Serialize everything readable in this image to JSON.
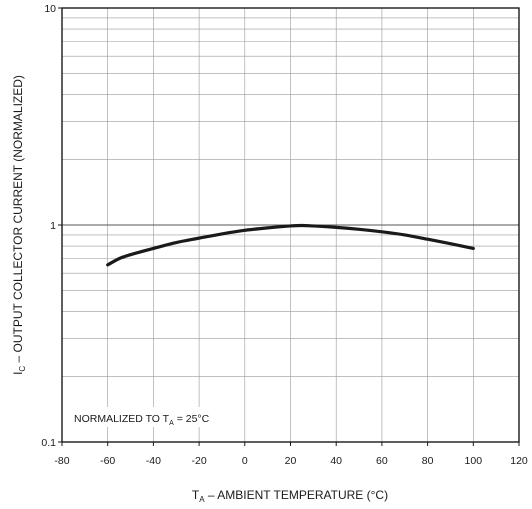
{
  "chart_data": {
    "type": "line",
    "xlabel": "T_A – AMBIENT TEMPERATURE (°C)",
    "xlabel_main": "T",
    "xlabel_sub": "A",
    "xlabel_rest": " – AMBIENT TEMPERATURE (°C)",
    "ylabel": "I_C – OUTPUT COLLECTOR  CURRENT (NORMALIZED)",
    "ylabel_main": "I",
    "ylabel_sub": "C",
    "ylabel_rest": " – OUTPUT COLLECTOR  CURRENT (NORMALIZED)",
    "xlim": [
      -80,
      120
    ],
    "ylim": [
      0.1,
      10
    ],
    "yscale": "log",
    "grid": true,
    "x_ticks": [
      -80,
      -60,
      -40,
      -20,
      0,
      20,
      40,
      60,
      80,
      100,
      120
    ],
    "y_tick_labels": [
      "10",
      "1",
      "0.1"
    ],
    "y_tick_values": [
      10,
      1,
      0.1
    ],
    "annotation": {
      "main": "NORMALIZED TO T",
      "sub": "A",
      "rest": " = 25°C"
    },
    "series": [
      {
        "x": [
          -60,
          -55,
          -50,
          -40,
          -30,
          -20,
          -10,
          0,
          10,
          20,
          25,
          30,
          40,
          50,
          60,
          70,
          80,
          90,
          100
        ],
        "y": [
          0.655,
          0.7,
          0.73,
          0.78,
          0.83,
          0.87,
          0.91,
          0.945,
          0.97,
          0.99,
          0.995,
          0.99,
          0.975,
          0.955,
          0.93,
          0.9,
          0.86,
          0.82,
          0.78
        ]
      }
    ],
    "colors": {
      "line": "#1a1a1a",
      "grid": "#9a9a9a",
      "axis": "#1a1a1a"
    }
  }
}
